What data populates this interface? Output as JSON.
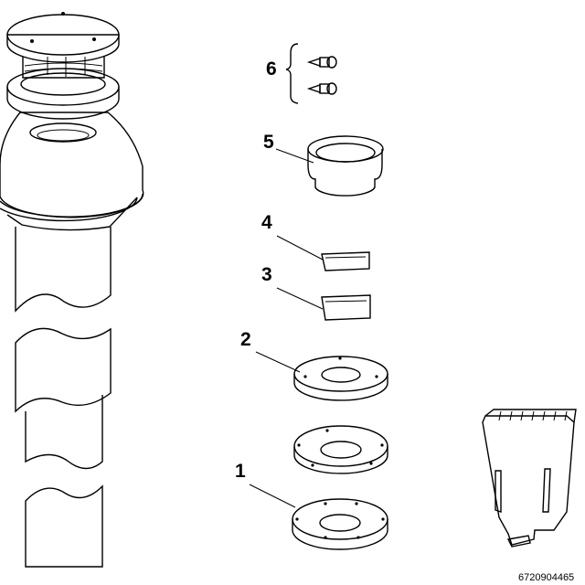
{
  "diagram": {
    "callouts": [
      {
        "id": "6",
        "label": "6",
        "part": "screws"
      },
      {
        "id": "5",
        "label": "5",
        "part": "adapter-sleeve"
      },
      {
        "id": "4",
        "label": "4",
        "part": "bracket-small"
      },
      {
        "id": "3",
        "label": "3",
        "part": "bracket-large"
      },
      {
        "id": "2",
        "label": "2",
        "part": "ring-upper"
      },
      {
        "id": "1",
        "label": "1",
        "part": "ring-lower"
      }
    ],
    "document_number": "6720904465"
  },
  "colors": {
    "line": "#000000",
    "background": "#ffffff",
    "shade_light": "#e6e6e6",
    "shade_mid": "#bdbdbd"
  }
}
